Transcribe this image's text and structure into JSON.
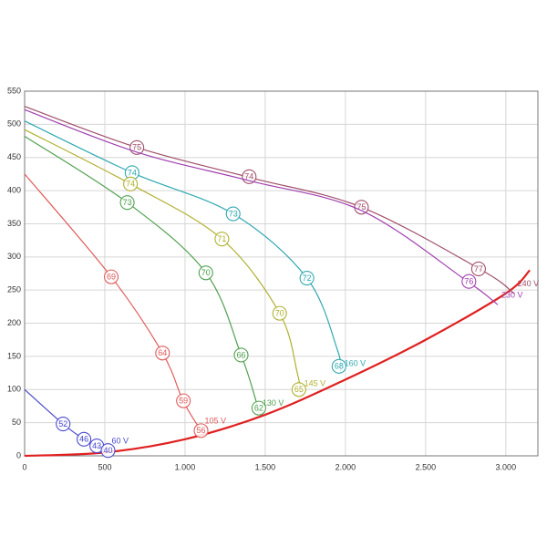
{
  "chart_data": {
    "type": "line",
    "xlim": [
      0,
      3200
    ],
    "ylim": [
      0,
      550
    ],
    "xticks": [
      0,
      500,
      {
        "value": 1000,
        "label": "1.000"
      },
      {
        "value": 1500,
        "label": "1.500"
      },
      {
        "value": 2000,
        "label": "2.000"
      },
      {
        "value": 2500,
        "label": "2.500"
      },
      {
        "value": 3000,
        "label": "3.000"
      }
    ],
    "yticks": [
      0,
      50,
      100,
      150,
      200,
      250,
      300,
      350,
      400,
      450,
      500,
      550
    ],
    "grid": true,
    "series": [
      {
        "name": "240 V",
        "color": "#a0506a",
        "x": [
          0,
          700,
          1400,
          2100,
          2850,
          3050
        ],
        "y": [
          527,
          465,
          420,
          375,
          280,
          245
        ],
        "points": [
          {
            "x": 700,
            "y": 465,
            "eff": 75
          },
          {
            "x": 1400,
            "y": 421,
            "eff": 74
          },
          {
            "x": 2100,
            "y": 375,
            "eff": 75
          },
          {
            "x": 2830,
            "y": 282,
            "eff": 77
          }
        ]
      },
      {
        "name": "230 V",
        "color": "#a040b0",
        "x": [
          0,
          700,
          1400,
          2100,
          2750,
          2950
        ],
        "y": [
          522,
          458,
          415,
          370,
          265,
          228
        ],
        "points": [
          {
            "x": 2770,
            "y": 263,
            "eff": 76
          }
        ]
      },
      {
        "name": "160 V",
        "color": "#30a8b0",
        "x": [
          0,
          670,
          1300,
          1760,
          1950,
          1970
        ],
        "y": [
          505,
          427,
          365,
          268,
          160,
          125
        ],
        "points": [
          {
            "x": 670,
            "y": 427,
            "eff": 74
          },
          {
            "x": 1300,
            "y": 365,
            "eff": 73
          },
          {
            "x": 1760,
            "y": 268,
            "eff": 72
          },
          {
            "x": 1960,
            "y": 135,
            "eff": 68
          }
        ]
      },
      {
        "name": "145 V",
        "color": "#b0b030",
        "x": [
          0,
          660,
          1230,
          1590,
          1700,
          1720
        ],
        "y": [
          492,
          410,
          327,
          215,
          125,
          95
        ],
        "points": [
          {
            "x": 660,
            "y": 410,
            "eff": 74
          },
          {
            "x": 1230,
            "y": 327,
            "eff": 71
          },
          {
            "x": 1590,
            "y": 215,
            "eff": 70
          },
          {
            "x": 1710,
            "y": 100,
            "eff": 65
          }
        ]
      },
      {
        "name": "130 V",
        "color": "#50a050",
        "x": [
          0,
          640,
          1130,
          1350,
          1440,
          1460
        ],
        "y": [
          482,
          382,
          276,
          152,
          85,
          65
        ],
        "points": [
          {
            "x": 640,
            "y": 382,
            "eff": 73
          },
          {
            "x": 1130,
            "y": 276,
            "eff": 70
          },
          {
            "x": 1350,
            "y": 152,
            "eff": 66
          },
          {
            "x": 1460,
            "y": 72,
            "eff": 62
          }
        ]
      },
      {
        "name": "105 V",
        "color": "#e05a5a",
        "x": [
          0,
          540,
          860,
          990,
          1100
        ],
        "y": [
          425,
          270,
          155,
          82,
          38
        ],
        "points": [
          {
            "x": 540,
            "y": 270,
            "eff": 69
          },
          {
            "x": 860,
            "y": 155,
            "eff": 64
          },
          {
            "x": 990,
            "y": 83,
            "eff": 59
          },
          {
            "x": 1100,
            "y": 38,
            "eff": 56
          }
        ]
      },
      {
        "name": "60 V",
        "color": "#4a4ad0",
        "x": [
          0,
          240,
          370,
          450,
          520
        ],
        "y": [
          100,
          48,
          25,
          15,
          8
        ],
        "points": [
          {
            "x": 240,
            "y": 48,
            "eff": 52
          },
          {
            "x": 370,
            "y": 25,
            "eff": 46
          },
          {
            "x": 450,
            "y": 15,
            "eff": 43
          },
          {
            "x": 520,
            "y": 8,
            "eff": 40
          }
        ]
      }
    ],
    "system_curve": {
      "color": "#e02020",
      "x": [
        0,
        500,
        1000,
        1500,
        2000,
        2500,
        3000,
        3150
      ],
      "y": [
        0,
        5,
        25,
        62,
        115,
        175,
        245,
        280
      ]
    }
  }
}
